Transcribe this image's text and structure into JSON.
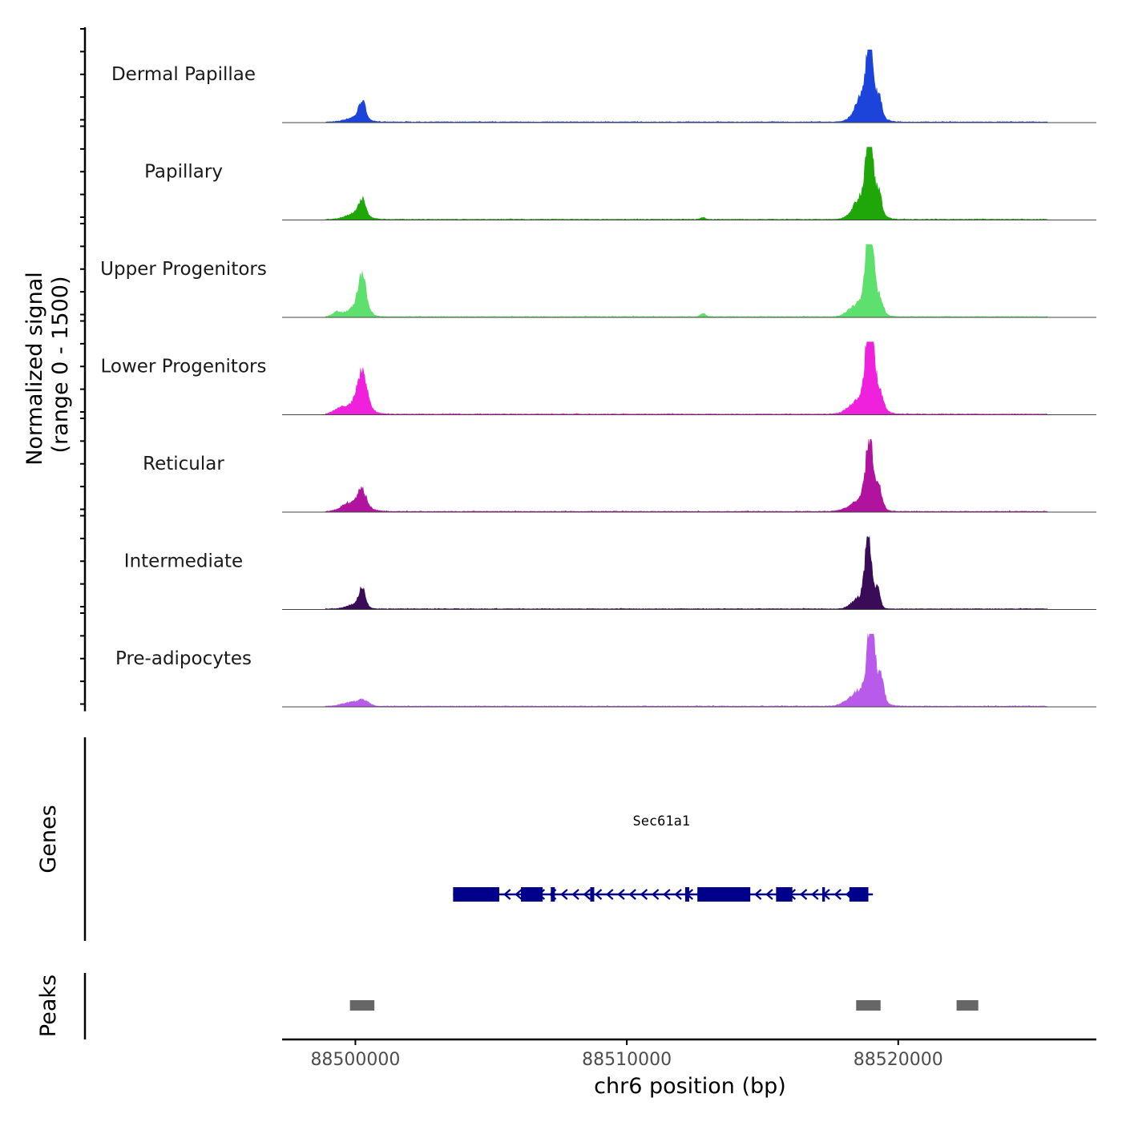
{
  "chart_data": {
    "type": "area",
    "xlabel": "chr6 position (bp)",
    "ylabel_line1": "Normalized signal",
    "ylabel_line2": "(range 0 - 1500)",
    "ylim": [
      0,
      1500
    ],
    "xlim": [
      88497300,
      88527300
    ],
    "x_ticks": [
      88500000,
      88510000,
      88520000
    ],
    "x_tick_labels": [
      "88500000",
      "88510000",
      "88520000"
    ],
    "tracks": [
      {
        "name": "Dermal Papillae",
        "color": "#1c44db",
        "peaks": [
          {
            "center": 88500250,
            "width": 120,
            "value": 380
          },
          {
            "center": 88500050,
            "width": 350,
            "value": 110
          },
          {
            "center": 88518950,
            "width": 120,
            "value": 1450
          },
          {
            "center": 88518850,
            "width": 350,
            "value": 500
          },
          {
            "center": 88519300,
            "width": 90,
            "value": 360
          },
          {
            "center": 88518600,
            "width": 200,
            "value": 160
          }
        ]
      },
      {
        "name": "Papillary",
        "color": "#1fa709",
        "peaks": [
          {
            "center": 88500250,
            "width": 120,
            "value": 330
          },
          {
            "center": 88500050,
            "width": 350,
            "value": 140
          },
          {
            "center": 88518950,
            "width": 120,
            "value": 1480
          },
          {
            "center": 88518850,
            "width": 350,
            "value": 520
          },
          {
            "center": 88519300,
            "width": 90,
            "value": 440
          },
          {
            "center": 88512800,
            "width": 80,
            "value": 40
          },
          {
            "center": 88518500,
            "width": 250,
            "value": 130
          }
        ]
      },
      {
        "name": "Upper Progenitors",
        "color": "#5de06e",
        "peaks": [
          {
            "center": 88500250,
            "width": 150,
            "value": 700
          },
          {
            "center": 88500050,
            "width": 350,
            "value": 200
          },
          {
            "center": 88499300,
            "width": 150,
            "value": 90
          },
          {
            "center": 88518950,
            "width": 130,
            "value": 1700
          },
          {
            "center": 88518850,
            "width": 350,
            "value": 400
          },
          {
            "center": 88519300,
            "width": 120,
            "value": 300
          },
          {
            "center": 88512800,
            "width": 90,
            "value": 70
          },
          {
            "center": 88518300,
            "width": 250,
            "value": 100
          }
        ]
      },
      {
        "name": "Lower Progenitors",
        "color": "#f021dc",
        "peaks": [
          {
            "center": 88500250,
            "width": 170,
            "value": 700
          },
          {
            "center": 88500050,
            "width": 400,
            "value": 230
          },
          {
            "center": 88499400,
            "width": 200,
            "value": 80
          },
          {
            "center": 88518950,
            "width": 140,
            "value": 1800
          },
          {
            "center": 88518850,
            "width": 400,
            "value": 380
          },
          {
            "center": 88519300,
            "width": 130,
            "value": 330
          },
          {
            "center": 88518300,
            "width": 250,
            "value": 80
          }
        ]
      },
      {
        "name": "Reticular",
        "color": "#b0139d",
        "peaks": [
          {
            "center": 88500250,
            "width": 140,
            "value": 350
          },
          {
            "center": 88500050,
            "width": 400,
            "value": 160
          },
          {
            "center": 88499700,
            "width": 250,
            "value": 70
          },
          {
            "center": 88518950,
            "width": 130,
            "value": 1300
          },
          {
            "center": 88518850,
            "width": 350,
            "value": 350
          },
          {
            "center": 88519300,
            "width": 110,
            "value": 380
          },
          {
            "center": 88518200,
            "width": 300,
            "value": 60
          }
        ]
      },
      {
        "name": "Intermediate",
        "color": "#3a0c58",
        "peaks": [
          {
            "center": 88500250,
            "width": 120,
            "value": 380
          },
          {
            "center": 88500000,
            "width": 300,
            "value": 100
          },
          {
            "center": 88518900,
            "width": 120,
            "value": 1330
          },
          {
            "center": 88518750,
            "width": 300,
            "value": 250
          },
          {
            "center": 88519250,
            "width": 90,
            "value": 380
          },
          {
            "center": 88518400,
            "width": 200,
            "value": 70
          }
        ]
      },
      {
        "name": "Pre-adipocytes",
        "color": "#b85bea",
        "peaks": [
          {
            "center": 88500300,
            "width": 200,
            "value": 120
          },
          {
            "center": 88499800,
            "width": 300,
            "value": 80
          },
          {
            "center": 88519000,
            "width": 120,
            "value": 1700
          },
          {
            "center": 88518850,
            "width": 400,
            "value": 380
          },
          {
            "center": 88519350,
            "width": 110,
            "value": 520
          },
          {
            "center": 88518300,
            "width": 300,
            "value": 90
          }
        ]
      }
    ],
    "genes_label": "Genes",
    "gene": {
      "name": "Sec61a1",
      "start": 88503600,
      "end": 88518950,
      "strand": "-",
      "color": "#00008b",
      "exons": [
        [
          88503600,
          88505300
        ],
        [
          88506100,
          88506900
        ],
        [
          88507200,
          88507350
        ],
        [
          88508650,
          88508800
        ],
        [
          88512150,
          88512300
        ],
        [
          88512600,
          88514550
        ],
        [
          88515500,
          88516100
        ],
        [
          88517200,
          88517300
        ],
        [
          88518200,
          88518900
        ]
      ]
    },
    "peaks_label": "Peaks",
    "peak_regions": [
      [
        88499800,
        88500700
      ],
      [
        88518450,
        88519350
      ],
      [
        88522150,
        88522950
      ]
    ],
    "peak_color": "#666666"
  }
}
